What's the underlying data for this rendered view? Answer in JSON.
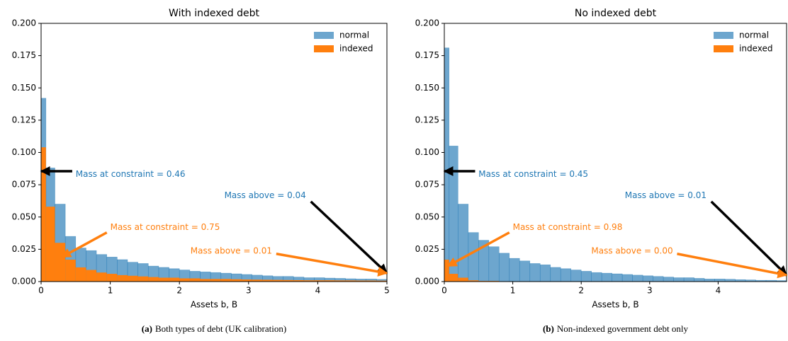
{
  "chart_data": [
    {
      "type": "histogram",
      "title": "With indexed debt",
      "xlabel": "Assets b, B",
      "caption": {
        "label": "(a)",
        "text": "Both types of debt (UK calibration)"
      },
      "bins": [
        0,
        0.07,
        0.2,
        0.35,
        0.5,
        0.65,
        0.8,
        0.95,
        1.1,
        1.25,
        1.4,
        1.55,
        1.7,
        1.85,
        2.0,
        2.15,
        2.3,
        2.45,
        2.6,
        2.75,
        2.9,
        3.05,
        3.2,
        3.35,
        3.5,
        3.65,
        3.8,
        3.95,
        4.1,
        4.25,
        4.4,
        4.55,
        4.7,
        4.85,
        5.0
      ],
      "series": [
        {
          "name": "normal",
          "color": "#1f77b4",
          "alpha": 0.65,
          "values": [
            0.142,
            0.088,
            0.06,
            0.035,
            0.026,
            0.024,
            0.021,
            0.019,
            0.017,
            0.015,
            0.014,
            0.012,
            0.011,
            0.01,
            0.009,
            0.008,
            0.0075,
            0.007,
            0.0065,
            0.006,
            0.0055,
            0.005,
            0.0045,
            0.004,
            0.004,
            0.0035,
            0.003,
            0.003,
            0.0027,
            0.0025,
            0.0022,
            0.002,
            0.002,
            0.0017
          ]
        },
        {
          "name": "indexed",
          "color": "#ff7f0e",
          "alpha": 1,
          "values": [
            0.104,
            0.058,
            0.03,
            0.017,
            0.011,
            0.009,
            0.007,
            0.006,
            0.005,
            0.0045,
            0.004,
            0.0035,
            0.003,
            0.003,
            0.0025,
            0.0025,
            0.002,
            0.002,
            0.002,
            0.0018,
            0.0016,
            0.0015,
            0.0014,
            0.0013,
            0.0012,
            0.0011,
            0.001,
            0.001,
            0.001,
            0.0009,
            0.0009,
            0.0008,
            0.0008,
            0.0007
          ]
        }
      ],
      "xlim": [
        0,
        5
      ],
      "xticks": [
        0,
        1,
        2,
        3,
        4,
        5
      ],
      "ylim": [
        0,
        0.2
      ],
      "yticks": [
        {
          "value": 0,
          "label": "0.000"
        },
        {
          "value": 0.025,
          "label": "0.025"
        },
        {
          "value": 0.05,
          "label": "0.050"
        },
        {
          "value": 0.075,
          "label": "0.075"
        },
        {
          "value": 0.1,
          "label": "0.100"
        },
        {
          "value": 0.125,
          "label": "0.125"
        },
        {
          "value": 0.15,
          "label": "0.150"
        },
        {
          "value": 0.175,
          "label": "0.175"
        },
        {
          "value": 0.2,
          "label": "0.200"
        }
      ],
      "legend": "upper right",
      "annotations": [
        {
          "text": "Mass at constraint = 0.46",
          "color": "#1f77b4",
          "arrow_color": "#000000"
        },
        {
          "text": "Mass above = 0.04",
          "color": "#1f77b4",
          "arrow_color": "#000000"
        },
        {
          "text": "Mass at constraint = 0.75",
          "color": "#ff7f0e",
          "arrow_color": "#ff7f0e"
        },
        {
          "text": "Mass above = 0.01",
          "color": "#ff7f0e",
          "arrow_color": "#ff7f0e"
        }
      ]
    },
    {
      "type": "histogram",
      "title": "No indexed debt",
      "xlabel": "Assets b, B",
      "caption": {
        "label": "(b)",
        "text": "Non-indexed government debt only"
      },
      "bins": [
        0,
        0.07,
        0.2,
        0.35,
        0.5,
        0.65,
        0.8,
        0.95,
        1.1,
        1.25,
        1.4,
        1.55,
        1.7,
        1.85,
        2.0,
        2.15,
        2.3,
        2.45,
        2.6,
        2.75,
        2.9,
        3.05,
        3.2,
        3.35,
        3.5,
        3.65,
        3.8,
        3.95,
        4.1,
        4.25,
        4.4,
        4.55,
        4.7,
        4.85,
        5.0
      ],
      "series": [
        {
          "name": "normal",
          "color": "#1f77b4",
          "alpha": 0.65,
          "values": [
            0.181,
            0.105,
            0.06,
            0.038,
            0.032,
            0.027,
            0.022,
            0.018,
            0.016,
            0.014,
            0.013,
            0.011,
            0.01,
            0.009,
            0.008,
            0.007,
            0.0065,
            0.006,
            0.0055,
            0.005,
            0.0045,
            0.004,
            0.0035,
            0.003,
            0.003,
            0.0025,
            0.002,
            0.002,
            0.0018,
            0.0015,
            0.0013,
            0.001,
            0.001,
            0.0008
          ]
        },
        {
          "name": "indexed",
          "color": "#ff7f0e",
          "alpha": 1,
          "values": [
            0.017,
            0.006,
            0.003,
            0.001,
            0.0005,
            0.0005,
            0,
            0,
            0,
            0,
            0,
            0,
            0,
            0,
            0,
            0,
            0,
            0,
            0,
            0,
            0,
            0,
            0,
            0,
            0,
            0,
            0,
            0,
            0,
            0,
            0,
            0,
            0,
            0
          ]
        }
      ],
      "xlim": [
        0,
        5
      ],
      "xticks": [
        0,
        1,
        2,
        3,
        4
      ],
      "ylim": [
        0,
        0.2
      ],
      "yticks": [
        {
          "value": 0,
          "label": "0.000"
        },
        {
          "value": 0.025,
          "label": "0.025"
        },
        {
          "value": 0.05,
          "label": "0.050"
        },
        {
          "value": 0.075,
          "label": "0.075"
        },
        {
          "value": 0.1,
          "label": "0.100"
        },
        {
          "value": 0.125,
          "label": "0.125"
        },
        {
          "value": 0.15,
          "label": "0.150"
        },
        {
          "value": 0.175,
          "label": "0.175"
        },
        {
          "value": 0.2,
          "label": "0.200"
        }
      ],
      "legend": "upper right",
      "annotations": [
        {
          "text": "Mass at constraint = 0.45",
          "color": "#1f77b4",
          "arrow_color": "#000000"
        },
        {
          "text": "Mass above = 0.01",
          "color": "#1f77b4",
          "arrow_color": "#000000"
        },
        {
          "text": "Mass at constraint = 0.98",
          "color": "#ff7f0e",
          "arrow_color": "#ff7f0e"
        },
        {
          "text": "Mass above = 0.00",
          "color": "#ff7f0e",
          "arrow_color": "#ff7f0e"
        }
      ]
    }
  ]
}
